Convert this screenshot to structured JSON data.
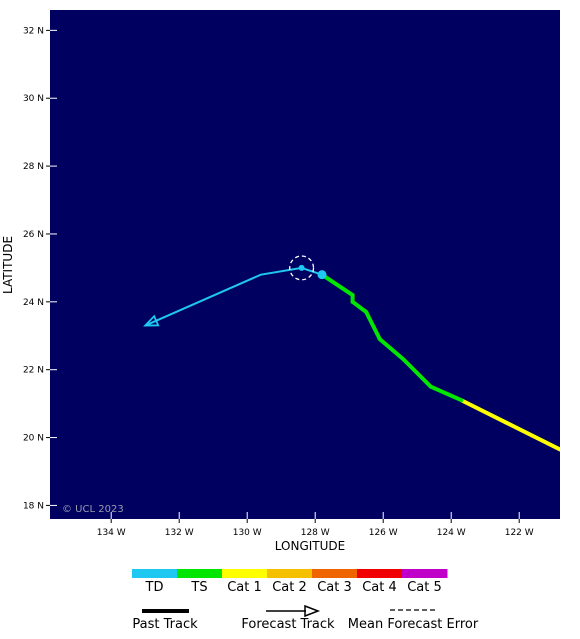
{
  "map": {
    "background_color": "#000060",
    "x_axis_title": "LONGITUDE",
    "y_axis_title": "LATITUDE",
    "copyright": "© UCL 2023",
    "lon_ticks": [
      {
        "value": -134,
        "label": "134 W"
      },
      {
        "value": -132,
        "label": "132 W"
      },
      {
        "value": -130,
        "label": "130 W"
      },
      {
        "value": -128,
        "label": "128 W"
      },
      {
        "value": -126,
        "label": "126 W"
      },
      {
        "value": -124,
        "label": "124 W"
      },
      {
        "value": -122,
        "label": "122 W"
      }
    ],
    "lat_ticks": [
      {
        "value": 32,
        "label": "32 N"
      },
      {
        "value": 30,
        "label": "30 N"
      },
      {
        "value": 28,
        "label": "28 N"
      },
      {
        "value": 26,
        "label": "26 N"
      },
      {
        "value": 24,
        "label": "24 N"
      },
      {
        "value": 22,
        "label": "22 N"
      },
      {
        "value": 20,
        "label": "20 N"
      },
      {
        "value": 18,
        "label": "18 N"
      }
    ],
    "lon_range": [
      -135.8,
      -120.8
    ],
    "lat_range": [
      17.6,
      32.6
    ]
  },
  "storm": {
    "past_track": [
      {
        "lon": -120.8,
        "lat": 19.65,
        "category": "Cat 2"
      },
      {
        "lon": -122.4,
        "lat": 20.45,
        "category": "Cat 1"
      },
      {
        "lon": -123.7,
        "lat": 21.1,
        "category": "Cat 1"
      },
      {
        "lon": -124.6,
        "lat": 21.5,
        "category": "TS"
      },
      {
        "lon": -125.4,
        "lat": 22.3,
        "category": "TS"
      },
      {
        "lon": -126.1,
        "lat": 22.9,
        "category": "TS"
      },
      {
        "lon": -126.5,
        "lat": 23.7,
        "category": "TS"
      },
      {
        "lon": -126.9,
        "lat": 24.0,
        "category": "TS"
      },
      {
        "lon": -126.9,
        "lat": 24.2,
        "category": "TS"
      },
      {
        "lon": -127.8,
        "lat": 24.8,
        "category": "TS"
      }
    ],
    "forecast_track": [
      {
        "lon": -127.8,
        "lat": 24.8
      },
      {
        "lon": -128.4,
        "lat": 25.0
      },
      {
        "lon": -129.6,
        "lat": 24.8
      },
      {
        "lon": -133.0,
        "lat": 23.3
      }
    ],
    "current_position": {
      "lon": -127.8,
      "lat": 24.8
    },
    "forecast_point": {
      "lon": -128.4,
      "lat": 25.0
    },
    "forecast_error_radius_deg": 0.35,
    "forecast_color": "#1ec8f0"
  },
  "legend": {
    "categories": [
      {
        "label": "TD",
        "color": "#1ec8f0"
      },
      {
        "label": "TS",
        "color": "#00e600"
      },
      {
        "label": "Cat 1",
        "color": "#ffff00"
      },
      {
        "label": "Cat 2",
        "color": "#f5c000"
      },
      {
        "label": "Cat 3",
        "color": "#f06400"
      },
      {
        "label": "Cat 4",
        "color": "#f00000"
      },
      {
        "label": "Cat 5",
        "color": "#c000c8"
      }
    ],
    "past_track_label": "Past Track",
    "forecast_track_label": "Forecast Track",
    "mean_error_label": "Mean Forecast Error"
  }
}
